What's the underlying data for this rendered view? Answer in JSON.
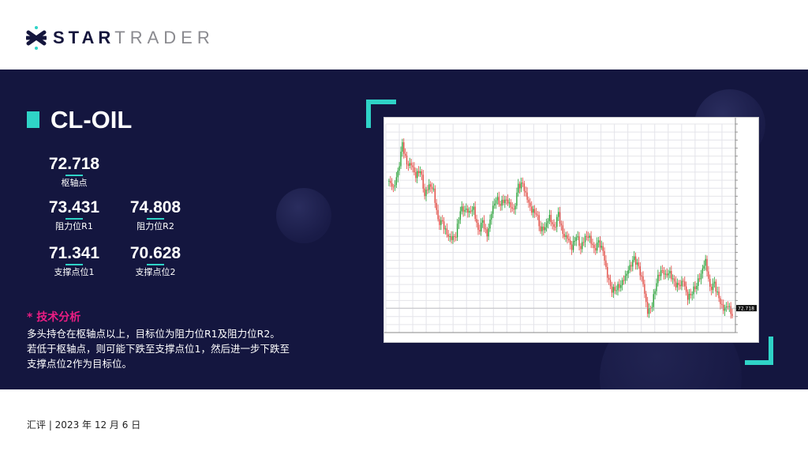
{
  "brand": {
    "part1": "STAR",
    "part2": "TRADER",
    "accent": "#2fd3c7",
    "dark": "#15163d"
  },
  "symbol": "CL-OIL",
  "levels": [
    {
      "value": "72.718",
      "label": "枢轴点"
    },
    {
      "value": "73.431",
      "label": "阻力位R1"
    },
    {
      "value": "74.808",
      "label": "阻力位R2"
    },
    {
      "value": "71.341",
      "label": "支撑点位1"
    },
    {
      "value": "70.628",
      "label": "支撑点位2"
    }
  ],
  "analysis": {
    "title": "* 技术分析",
    "lines": [
      "多头持仓在枢轴点以上，目标位为阻力位R1及阻力位R2。",
      "若低于枢轴点，则可能下跌至支撑点位1，然后进一步下跌至",
      "支撑点位2作为目标位。"
    ]
  },
  "footer": {
    "date": "汇评 | 2023 年 12 月 6 日"
  },
  "colors": {
    "background": "#14163f",
    "highlight": "#ea1d83",
    "up": "#1f9d2f",
    "down": "#e0423a"
  },
  "chart_data": {
    "type": "candlestick",
    "ylim": [
      69.5,
      97.0
    ],
    "grid": true,
    "current_price": "72.718",
    "closes": [
      89.5,
      88.5,
      90.5,
      94.3,
      91.6,
      91.7,
      90.2,
      91.1,
      87.7,
      89.0,
      88.2,
      84.1,
      83.9,
      82.4,
      81.9,
      82.4,
      85.8,
      85.8,
      85.4,
      85.8,
      82.7,
      84.1,
      82.2,
      85.4,
      87.3,
      86.5,
      87.1,
      86.5,
      85.4,
      88.8,
      89.0,
      87.1,
      85.6,
      85.4,
      83.1,
      83.4,
      84.8,
      83.1,
      85.1,
      82.4,
      82.0,
      80.7,
      82.4,
      80.7,
      82.2,
      82.0,
      80.3,
      81.4,
      80.2,
      76.9,
      75.1,
      75.4,
      75.9,
      76.9,
      78.1,
      79.2,
      78.0,
      75.9,
      72.2,
      73.2,
      76.3,
      77.8,
      77.1,
      77.3,
      75.9,
      75.6,
      76.3,
      74.1,
      74.9,
      75.9,
      77.3,
      79.0,
      75.2,
      75.9,
      73.9,
      72.5,
      73.2,
      71.7
    ]
  }
}
